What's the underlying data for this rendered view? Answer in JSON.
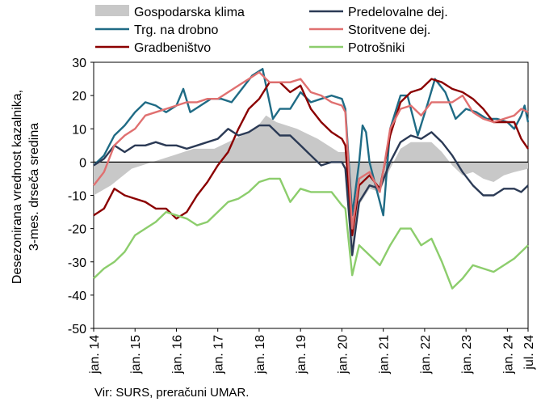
{
  "chart_data": {
    "type": "line",
    "ylabel_line1": "Desezonirana vrednost kazalnika,",
    "ylabel_line2": "3-mes. drseča sredina",
    "source": "Vir: SURS, preračuni UMAR.",
    "ylim": [
      -50,
      30
    ],
    "y_ticks": [
      "-50",
      "-40",
      "-30",
      "-20",
      "-10",
      "0",
      "10",
      "20",
      "30"
    ],
    "x_range": [
      "2014-01",
      "2024-07"
    ],
    "x_ticks": [
      {
        "t": "2014-01",
        "label": "jan. 14"
      },
      {
        "t": "2015-01",
        "label": "jan. 15"
      },
      {
        "t": "2016-01",
        "label": "jan. 16"
      },
      {
        "t": "2017-01",
        "label": "jan. 17"
      },
      {
        "t": "2018-01",
        "label": "jan. 18"
      },
      {
        "t": "2019-01",
        "label": "jan. 19"
      },
      {
        "t": "2020-01",
        "label": "jan. 20"
      },
      {
        "t": "2021-01",
        "label": "jan. 21"
      },
      {
        "t": "2022-01",
        "label": "jan. 22"
      },
      {
        "t": "2023-01",
        "label": "jan. 23"
      },
      {
        "t": "2024-01",
        "label": "jan. 24"
      },
      {
        "t": "2024-07",
        "label": "jul. 24"
      }
    ],
    "grid": false,
    "legend_position": "top",
    "series": [
      {
        "name": "Gospodarska klima",
        "kind": "area",
        "color": "#c8c8c8",
        "points": [
          [
            "2014-01",
            -10
          ],
          [
            "2014-06",
            -7
          ],
          [
            "2014-12",
            -2
          ],
          [
            "2015-06",
            0
          ],
          [
            "2015-12",
            2
          ],
          [
            "2016-06",
            4
          ],
          [
            "2016-12",
            4
          ],
          [
            "2017-06",
            7
          ],
          [
            "2017-12",
            10
          ],
          [
            "2018-03",
            14
          ],
          [
            "2018-06",
            12
          ],
          [
            "2018-12",
            10
          ],
          [
            "2019-06",
            7
          ],
          [
            "2019-12",
            3
          ],
          [
            "2020-02",
            3
          ],
          [
            "2020-04",
            -28
          ],
          [
            "2020-06",
            -13
          ],
          [
            "2020-09",
            -8
          ],
          [
            "2020-12",
            -9
          ],
          [
            "2021-03",
            -2
          ],
          [
            "2021-06",
            4
          ],
          [
            "2021-09",
            6
          ],
          [
            "2021-12",
            6
          ],
          [
            "2022-03",
            6
          ],
          [
            "2022-06",
            3
          ],
          [
            "2022-09",
            -1
          ],
          [
            "2022-12",
            -4
          ],
          [
            "2023-03",
            -3
          ],
          [
            "2023-06",
            -5
          ],
          [
            "2023-09",
            -6
          ],
          [
            "2023-12",
            -4
          ],
          [
            "2024-03",
            -3
          ],
          [
            "2024-07",
            -2
          ]
        ]
      },
      {
        "name": "Trg. na drobno",
        "kind": "line",
        "color": "#1f6b85",
        "points": [
          [
            "2014-01",
            -1
          ],
          [
            "2014-04",
            2
          ],
          [
            "2014-07",
            8
          ],
          [
            "2014-10",
            11
          ],
          [
            "2015-01",
            15
          ],
          [
            "2015-04",
            18
          ],
          [
            "2015-07",
            17
          ],
          [
            "2015-10",
            15
          ],
          [
            "2016-01",
            17
          ],
          [
            "2016-03",
            22
          ],
          [
            "2016-05",
            15
          ],
          [
            "2016-08",
            17
          ],
          [
            "2016-11",
            19
          ],
          [
            "2017-02",
            19
          ],
          [
            "2017-05",
            18
          ],
          [
            "2017-08",
            22
          ],
          [
            "2017-11",
            26
          ],
          [
            "2018-02",
            28
          ],
          [
            "2018-05",
            13
          ],
          [
            "2018-07",
            16
          ],
          [
            "2018-10",
            16
          ],
          [
            "2019-01",
            21
          ],
          [
            "2019-04",
            18
          ],
          [
            "2019-07",
            19
          ],
          [
            "2019-10",
            20
          ],
          [
            "2020-01",
            19
          ],
          [
            "2020-02",
            16
          ],
          [
            "2020-04",
            -16
          ],
          [
            "2020-06",
            0
          ],
          [
            "2020-07",
            11
          ],
          [
            "2020-08",
            9
          ],
          [
            "2020-09",
            0
          ],
          [
            "2020-11",
            -8
          ],
          [
            "2021-01",
            -16
          ],
          [
            "2021-03",
            10
          ],
          [
            "2021-06",
            20
          ],
          [
            "2021-08",
            20
          ],
          [
            "2021-11",
            8
          ],
          [
            "2022-02",
            18
          ],
          [
            "2022-04",
            25
          ],
          [
            "2022-07",
            21
          ],
          [
            "2022-10",
            13
          ],
          [
            "2023-01",
            16
          ],
          [
            "2023-04",
            15
          ],
          [
            "2023-07",
            13
          ],
          [
            "2023-10",
            13
          ],
          [
            "2024-01",
            12
          ],
          [
            "2024-03",
            10
          ],
          [
            "2024-05",
            14
          ],
          [
            "2024-06",
            17
          ],
          [
            "2024-07",
            12
          ]
        ]
      },
      {
        "name": "Gradbeništvo",
        "kind": "line",
        "color": "#8b0000",
        "points": [
          [
            "2014-01",
            -16
          ],
          [
            "2014-04",
            -14
          ],
          [
            "2014-07",
            -8
          ],
          [
            "2014-10",
            -10
          ],
          [
            "2015-01",
            -11
          ],
          [
            "2015-04",
            -12
          ],
          [
            "2015-07",
            -14
          ],
          [
            "2015-10",
            -14
          ],
          [
            "2016-01",
            -17
          ],
          [
            "2016-04",
            -15
          ],
          [
            "2016-07",
            -10
          ],
          [
            "2016-10",
            -6
          ],
          [
            "2017-01",
            -1
          ],
          [
            "2017-04",
            3
          ],
          [
            "2017-07",
            10
          ],
          [
            "2017-10",
            16
          ],
          [
            "2018-01",
            19
          ],
          [
            "2018-04",
            24
          ],
          [
            "2018-07",
            24
          ],
          [
            "2018-10",
            21
          ],
          [
            "2019-01",
            23
          ],
          [
            "2019-04",
            16
          ],
          [
            "2019-07",
            12
          ],
          [
            "2019-10",
            9
          ],
          [
            "2020-01",
            7
          ],
          [
            "2020-02",
            5
          ],
          [
            "2020-04",
            -22
          ],
          [
            "2020-06",
            -7
          ],
          [
            "2020-09",
            -4
          ],
          [
            "2020-12",
            -8
          ],
          [
            "2021-03",
            8
          ],
          [
            "2021-06",
            18
          ],
          [
            "2021-09",
            21
          ],
          [
            "2021-12",
            22
          ],
          [
            "2022-03",
            25
          ],
          [
            "2022-06",
            24
          ],
          [
            "2022-09",
            22
          ],
          [
            "2022-12",
            21
          ],
          [
            "2023-03",
            19
          ],
          [
            "2023-06",
            16
          ],
          [
            "2023-09",
            12
          ],
          [
            "2023-12",
            12
          ],
          [
            "2024-03",
            12
          ],
          [
            "2024-05",
            7
          ],
          [
            "2024-07",
            4
          ]
        ]
      },
      {
        "name": "Predelovalne dej.",
        "kind": "line",
        "color": "#2b3a55",
        "points": [
          [
            "2014-01",
            -1
          ],
          [
            "2014-04",
            1
          ],
          [
            "2014-07",
            5
          ],
          [
            "2014-10",
            3
          ],
          [
            "2015-01",
            5
          ],
          [
            "2015-04",
            5
          ],
          [
            "2015-07",
            6
          ],
          [
            "2015-10",
            5
          ],
          [
            "2016-01",
            5
          ],
          [
            "2016-04",
            4
          ],
          [
            "2016-07",
            5
          ],
          [
            "2016-10",
            6
          ],
          [
            "2017-01",
            7
          ],
          [
            "2017-04",
            10
          ],
          [
            "2017-07",
            8
          ],
          [
            "2017-10",
            9
          ],
          [
            "2018-01",
            11
          ],
          [
            "2018-04",
            11
          ],
          [
            "2018-07",
            8
          ],
          [
            "2018-10",
            8
          ],
          [
            "2019-01",
            5
          ],
          [
            "2019-04",
            2
          ],
          [
            "2019-07",
            -1
          ],
          [
            "2019-10",
            0
          ],
          [
            "2020-01",
            0
          ],
          [
            "2020-02",
            -2
          ],
          [
            "2020-04",
            -28
          ],
          [
            "2020-06",
            -12
          ],
          [
            "2020-09",
            -7
          ],
          [
            "2020-12",
            -8
          ],
          [
            "2021-03",
            0
          ],
          [
            "2021-06",
            6
          ],
          [
            "2021-09",
            8
          ],
          [
            "2021-12",
            7
          ],
          [
            "2022-03",
            9
          ],
          [
            "2022-06",
            6
          ],
          [
            "2022-09",
            2
          ],
          [
            "2022-12",
            -3
          ],
          [
            "2023-03",
            -7
          ],
          [
            "2023-06",
            -10
          ],
          [
            "2023-09",
            -10
          ],
          [
            "2023-12",
            -8
          ],
          [
            "2024-03",
            -8
          ],
          [
            "2024-05",
            -9
          ],
          [
            "2024-07",
            -7
          ]
        ]
      },
      {
        "name": "Storitvene dej.",
        "kind": "line",
        "color": "#e07070",
        "points": [
          [
            "2014-01",
            -7
          ],
          [
            "2014-04",
            -3
          ],
          [
            "2014-07",
            5
          ],
          [
            "2014-10",
            8
          ],
          [
            "2015-01",
            10
          ],
          [
            "2015-04",
            14
          ],
          [
            "2015-07",
            15
          ],
          [
            "2015-10",
            16
          ],
          [
            "2016-01",
            17
          ],
          [
            "2016-04",
            18
          ],
          [
            "2016-07",
            18
          ],
          [
            "2016-10",
            19
          ],
          [
            "2017-01",
            19
          ],
          [
            "2017-04",
            21
          ],
          [
            "2017-07",
            23
          ],
          [
            "2017-10",
            25
          ],
          [
            "2018-01",
            27
          ],
          [
            "2018-04",
            24
          ],
          [
            "2018-07",
            24
          ],
          [
            "2018-10",
            24
          ],
          [
            "2019-01",
            25
          ],
          [
            "2019-04",
            21
          ],
          [
            "2019-07",
            20
          ],
          [
            "2019-10",
            18
          ],
          [
            "2020-01",
            17
          ],
          [
            "2020-02",
            15
          ],
          [
            "2020-04",
            -20
          ],
          [
            "2020-06",
            -5
          ],
          [
            "2020-09",
            -3
          ],
          [
            "2020-12",
            -9
          ],
          [
            "2021-03",
            10
          ],
          [
            "2021-06",
            16
          ],
          [
            "2021-09",
            17
          ],
          [
            "2021-12",
            14
          ],
          [
            "2022-03",
            18
          ],
          [
            "2022-06",
            18
          ],
          [
            "2022-09",
            18
          ],
          [
            "2022-12",
            20
          ],
          [
            "2023-03",
            15
          ],
          [
            "2023-06",
            13
          ],
          [
            "2023-09",
            12
          ],
          [
            "2023-12",
            13
          ],
          [
            "2024-03",
            14
          ],
          [
            "2024-05",
            16
          ],
          [
            "2024-07",
            15
          ]
        ]
      },
      {
        "name": "Potrošniki",
        "kind": "line",
        "color": "#8ccd6c",
        "points": [
          [
            "2014-01",
            -35
          ],
          [
            "2014-04",
            -32
          ],
          [
            "2014-07",
            -30
          ],
          [
            "2014-10",
            -27
          ],
          [
            "2015-01",
            -22
          ],
          [
            "2015-04",
            -20
          ],
          [
            "2015-07",
            -18
          ],
          [
            "2015-10",
            -15
          ],
          [
            "2016-01",
            -16
          ],
          [
            "2016-04",
            -17
          ],
          [
            "2016-07",
            -19
          ],
          [
            "2016-10",
            -18
          ],
          [
            "2017-01",
            -15
          ],
          [
            "2017-04",
            -12
          ],
          [
            "2017-07",
            -11
          ],
          [
            "2017-10",
            -9
          ],
          [
            "2018-01",
            -6
          ],
          [
            "2018-04",
            -5
          ],
          [
            "2018-07",
            -5
          ],
          [
            "2018-10",
            -12
          ],
          [
            "2019-01",
            -8
          ],
          [
            "2019-04",
            -9
          ],
          [
            "2019-07",
            -9
          ],
          [
            "2019-10",
            -9
          ],
          [
            "2020-01",
            -13
          ],
          [
            "2020-02",
            -14
          ],
          [
            "2020-04",
            -34
          ],
          [
            "2020-06",
            -25
          ],
          [
            "2020-09",
            -28
          ],
          [
            "2020-12",
            -31
          ],
          [
            "2021-03",
            -25
          ],
          [
            "2021-06",
            -20
          ],
          [
            "2021-09",
            -20
          ],
          [
            "2021-12",
            -25
          ],
          [
            "2022-03",
            -23
          ],
          [
            "2022-06",
            -30
          ],
          [
            "2022-09",
            -38
          ],
          [
            "2022-12",
            -35
          ],
          [
            "2023-03",
            -31
          ],
          [
            "2023-06",
            -32
          ],
          [
            "2023-09",
            -33
          ],
          [
            "2023-12",
            -31
          ],
          [
            "2024-03",
            -29
          ],
          [
            "2024-05",
            -27
          ],
          [
            "2024-07",
            -25
          ]
        ]
      }
    ]
  }
}
